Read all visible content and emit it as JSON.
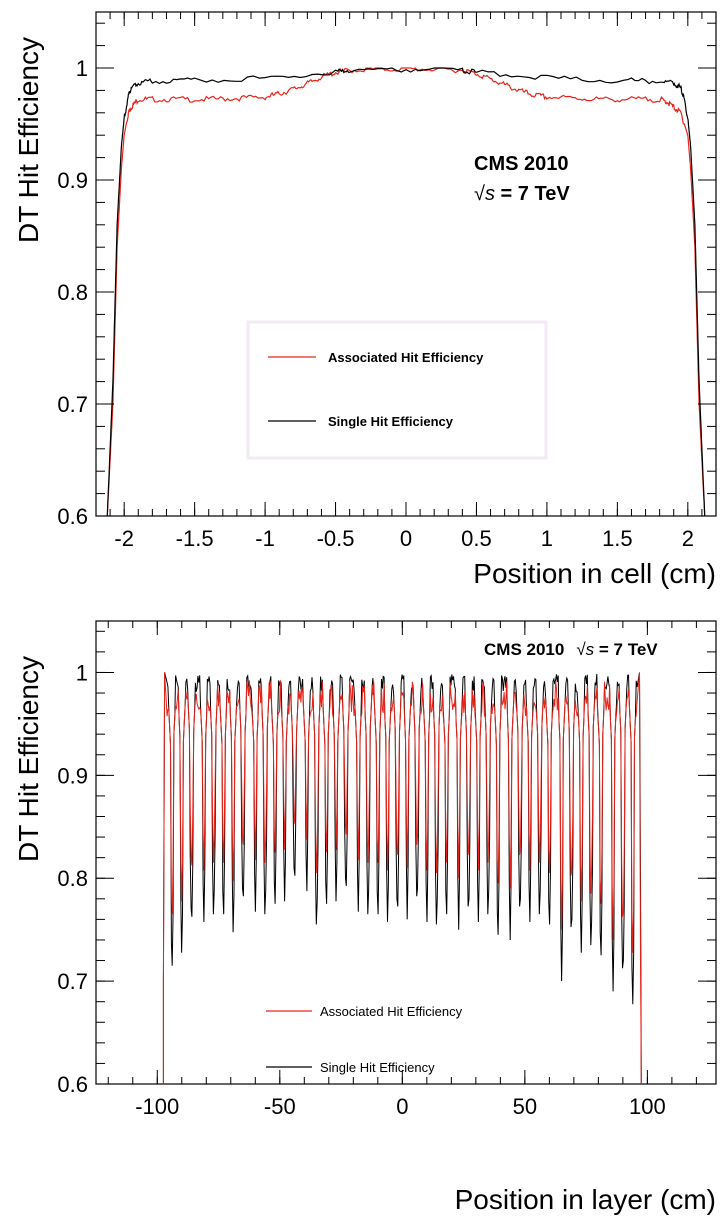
{
  "chart_data": [
    {
      "type": "line",
      "ylabel": "DT Hit Efficiency",
      "xlabel": "Position in cell (cm)",
      "xlim": [
        -2.2,
        2.2
      ],
      "ylim": [
        0.6,
        1.05
      ],
      "x_ticks": [
        "-2",
        "-1.5",
        "-1",
        "-0.5",
        "0",
        "0.5",
        "1",
        "1.5",
        "2"
      ],
      "x_tick_values": [
        -2,
        -1.5,
        -1,
        -0.5,
        0,
        0.5,
        1,
        1.5,
        2
      ],
      "y_ticks": [
        "0.6",
        "0.7",
        "0.8",
        "0.9",
        "1"
      ],
      "y_tick_values": [
        0.6,
        0.7,
        0.8,
        0.9,
        1.0
      ],
      "annotation_line1": "CMS 2010",
      "annotation_sqrt_s": "√s",
      "annotation_energy": " = 7 TeV",
      "legend_position": "center",
      "series": [
        {
          "name": "Associated Hit Efficiency",
          "color": "#e8241a",
          "x": [
            -2.12,
            -2.08,
            -2.05,
            -2.02,
            -2.0,
            -1.97,
            -1.95,
            -1.9,
            -1.8,
            -1.6,
            -1.4,
            -1.2,
            -1.0,
            -0.9,
            -0.8,
            -0.7,
            -0.6,
            -0.5,
            -0.4,
            -0.2,
            0,
            0.2,
            0.4,
            0.5,
            0.6,
            0.7,
            0.8,
            0.9,
            1.0,
            1.2,
            1.4,
            1.6,
            1.8,
            1.85,
            1.9,
            1.95,
            2.0,
            2.02,
            2.05,
            2.08,
            2.12
          ],
          "values": [
            0.6,
            0.7,
            0.84,
            0.91,
            0.94,
            0.96,
            0.965,
            0.972,
            0.972,
            0.972,
            0.972,
            0.973,
            0.974,
            0.977,
            0.981,
            0.986,
            0.992,
            0.996,
            0.998,
            0.999,
            0.999,
            0.999,
            0.998,
            0.995,
            0.99,
            0.985,
            0.98,
            0.976,
            0.974,
            0.973,
            0.972,
            0.972,
            0.972,
            0.97,
            0.965,
            0.96,
            0.94,
            0.91,
            0.84,
            0.7,
            0.6
          ]
        },
        {
          "name": "Single Hit Efficiency",
          "color": "#000000",
          "x": [
            -2.12,
            -2.08,
            -2.05,
            -2.02,
            -2.0,
            -1.97,
            -1.95,
            -1.9,
            -1.8,
            -1.5,
            -1.0,
            -0.5,
            -0.4,
            0,
            0.4,
            0.5,
            1.0,
            1.5,
            1.8,
            1.9,
            1.95,
            1.97,
            2.0,
            2.02,
            2.05,
            2.08,
            2.12
          ],
          "values": [
            0.6,
            0.72,
            0.86,
            0.93,
            0.955,
            0.975,
            0.982,
            0.987,
            0.988,
            0.989,
            0.991,
            0.996,
            0.998,
            0.999,
            0.998,
            0.996,
            0.991,
            0.989,
            0.988,
            0.987,
            0.982,
            0.975,
            0.955,
            0.93,
            0.86,
            0.72,
            0.6
          ]
        }
      ]
    },
    {
      "type": "line",
      "ylabel": "DT Hit Efficiency",
      "xlabel": "Position in layer (cm)",
      "xlim": [
        -125,
        128
      ],
      "ylim": [
        0.6,
        1.05
      ],
      "x_ticks": [
        "-100",
        "-50",
        "0",
        "50",
        "100"
      ],
      "x_tick_values": [
        -100,
        -50,
        0,
        50,
        100
      ],
      "y_ticks": [
        "0.6",
        "0.7",
        "0.8",
        "0.9",
        "1"
      ],
      "y_tick_values": [
        0.6,
        0.7,
        0.8,
        0.9,
        1.0
      ],
      "annotation_line1": "CMS 2010",
      "annotation_sqrt_s": "√s",
      "annotation_energy": " = 7 TeV",
      "legend_position": "center",
      "layer_extent": [
        -96,
        96
      ],
      "cell_pitch": 4.2,
      "series": [
        {
          "name": "Associated Hit Efficiency",
          "color": "#e8241a",
          "plateau": 0.975,
          "dip_x": [
            -94,
            -90,
            -86,
            -81,
            -77,
            -73,
            -69,
            -65,
            -60,
            -56,
            -52,
            -48,
            -44,
            -39,
            -35,
            -31,
            -27,
            -23,
            -18,
            -14,
            -10,
            -6,
            -2,
            2,
            6,
            10,
            14,
            18,
            23,
            27,
            31,
            35,
            39,
            44,
            48,
            52,
            56,
            60,
            65,
            69,
            73,
            77,
            81,
            86,
            90,
            94
          ],
          "dip_min": [
            0.75,
            0.77,
            0.79,
            0.8,
            0.8,
            0.8,
            0.79,
            0.81,
            0.81,
            0.8,
            0.81,
            0.82,
            0.83,
            0.83,
            0.79,
            0.81,
            0.82,
            0.82,
            0.81,
            0.8,
            0.8,
            0.8,
            0.8,
            0.81,
            0.81,
            0.8,
            0.79,
            0.8,
            0.8,
            0.8,
            0.8,
            0.8,
            0.78,
            0.79,
            0.8,
            0.8,
            0.8,
            0.79,
            0.75,
            0.78,
            0.77,
            0.77,
            0.76,
            0.74,
            0.74,
            0.72
          ]
        },
        {
          "name": "Single Hit Efficiency",
          "color": "#000000",
          "plateau": 0.99,
          "dip_x": [
            -94,
            -90,
            -86,
            -81,
            -77,
            -73,
            -69,
            -65,
            -60,
            -56,
            -52,
            -48,
            -44,
            -39,
            -35,
            -31,
            -27,
            -23,
            -18,
            -14,
            -10,
            -6,
            -2,
            2,
            6,
            10,
            14,
            18,
            23,
            27,
            31,
            35,
            39,
            44,
            48,
            52,
            56,
            60,
            65,
            69,
            73,
            77,
            81,
            86,
            90,
            94
          ],
          "dip_min": [
            0.7,
            0.72,
            0.74,
            0.75,
            0.75,
            0.75,
            0.74,
            0.76,
            0.76,
            0.75,
            0.76,
            0.77,
            0.78,
            0.78,
            0.74,
            0.76,
            0.77,
            0.77,
            0.76,
            0.75,
            0.75,
            0.75,
            0.75,
            0.76,
            0.76,
            0.75,
            0.74,
            0.75,
            0.75,
            0.75,
            0.75,
            0.75,
            0.73,
            0.74,
            0.75,
            0.75,
            0.75,
            0.74,
            0.7,
            0.73,
            0.72,
            0.72,
            0.71,
            0.69,
            0.69,
            0.67
          ]
        }
      ]
    }
  ]
}
